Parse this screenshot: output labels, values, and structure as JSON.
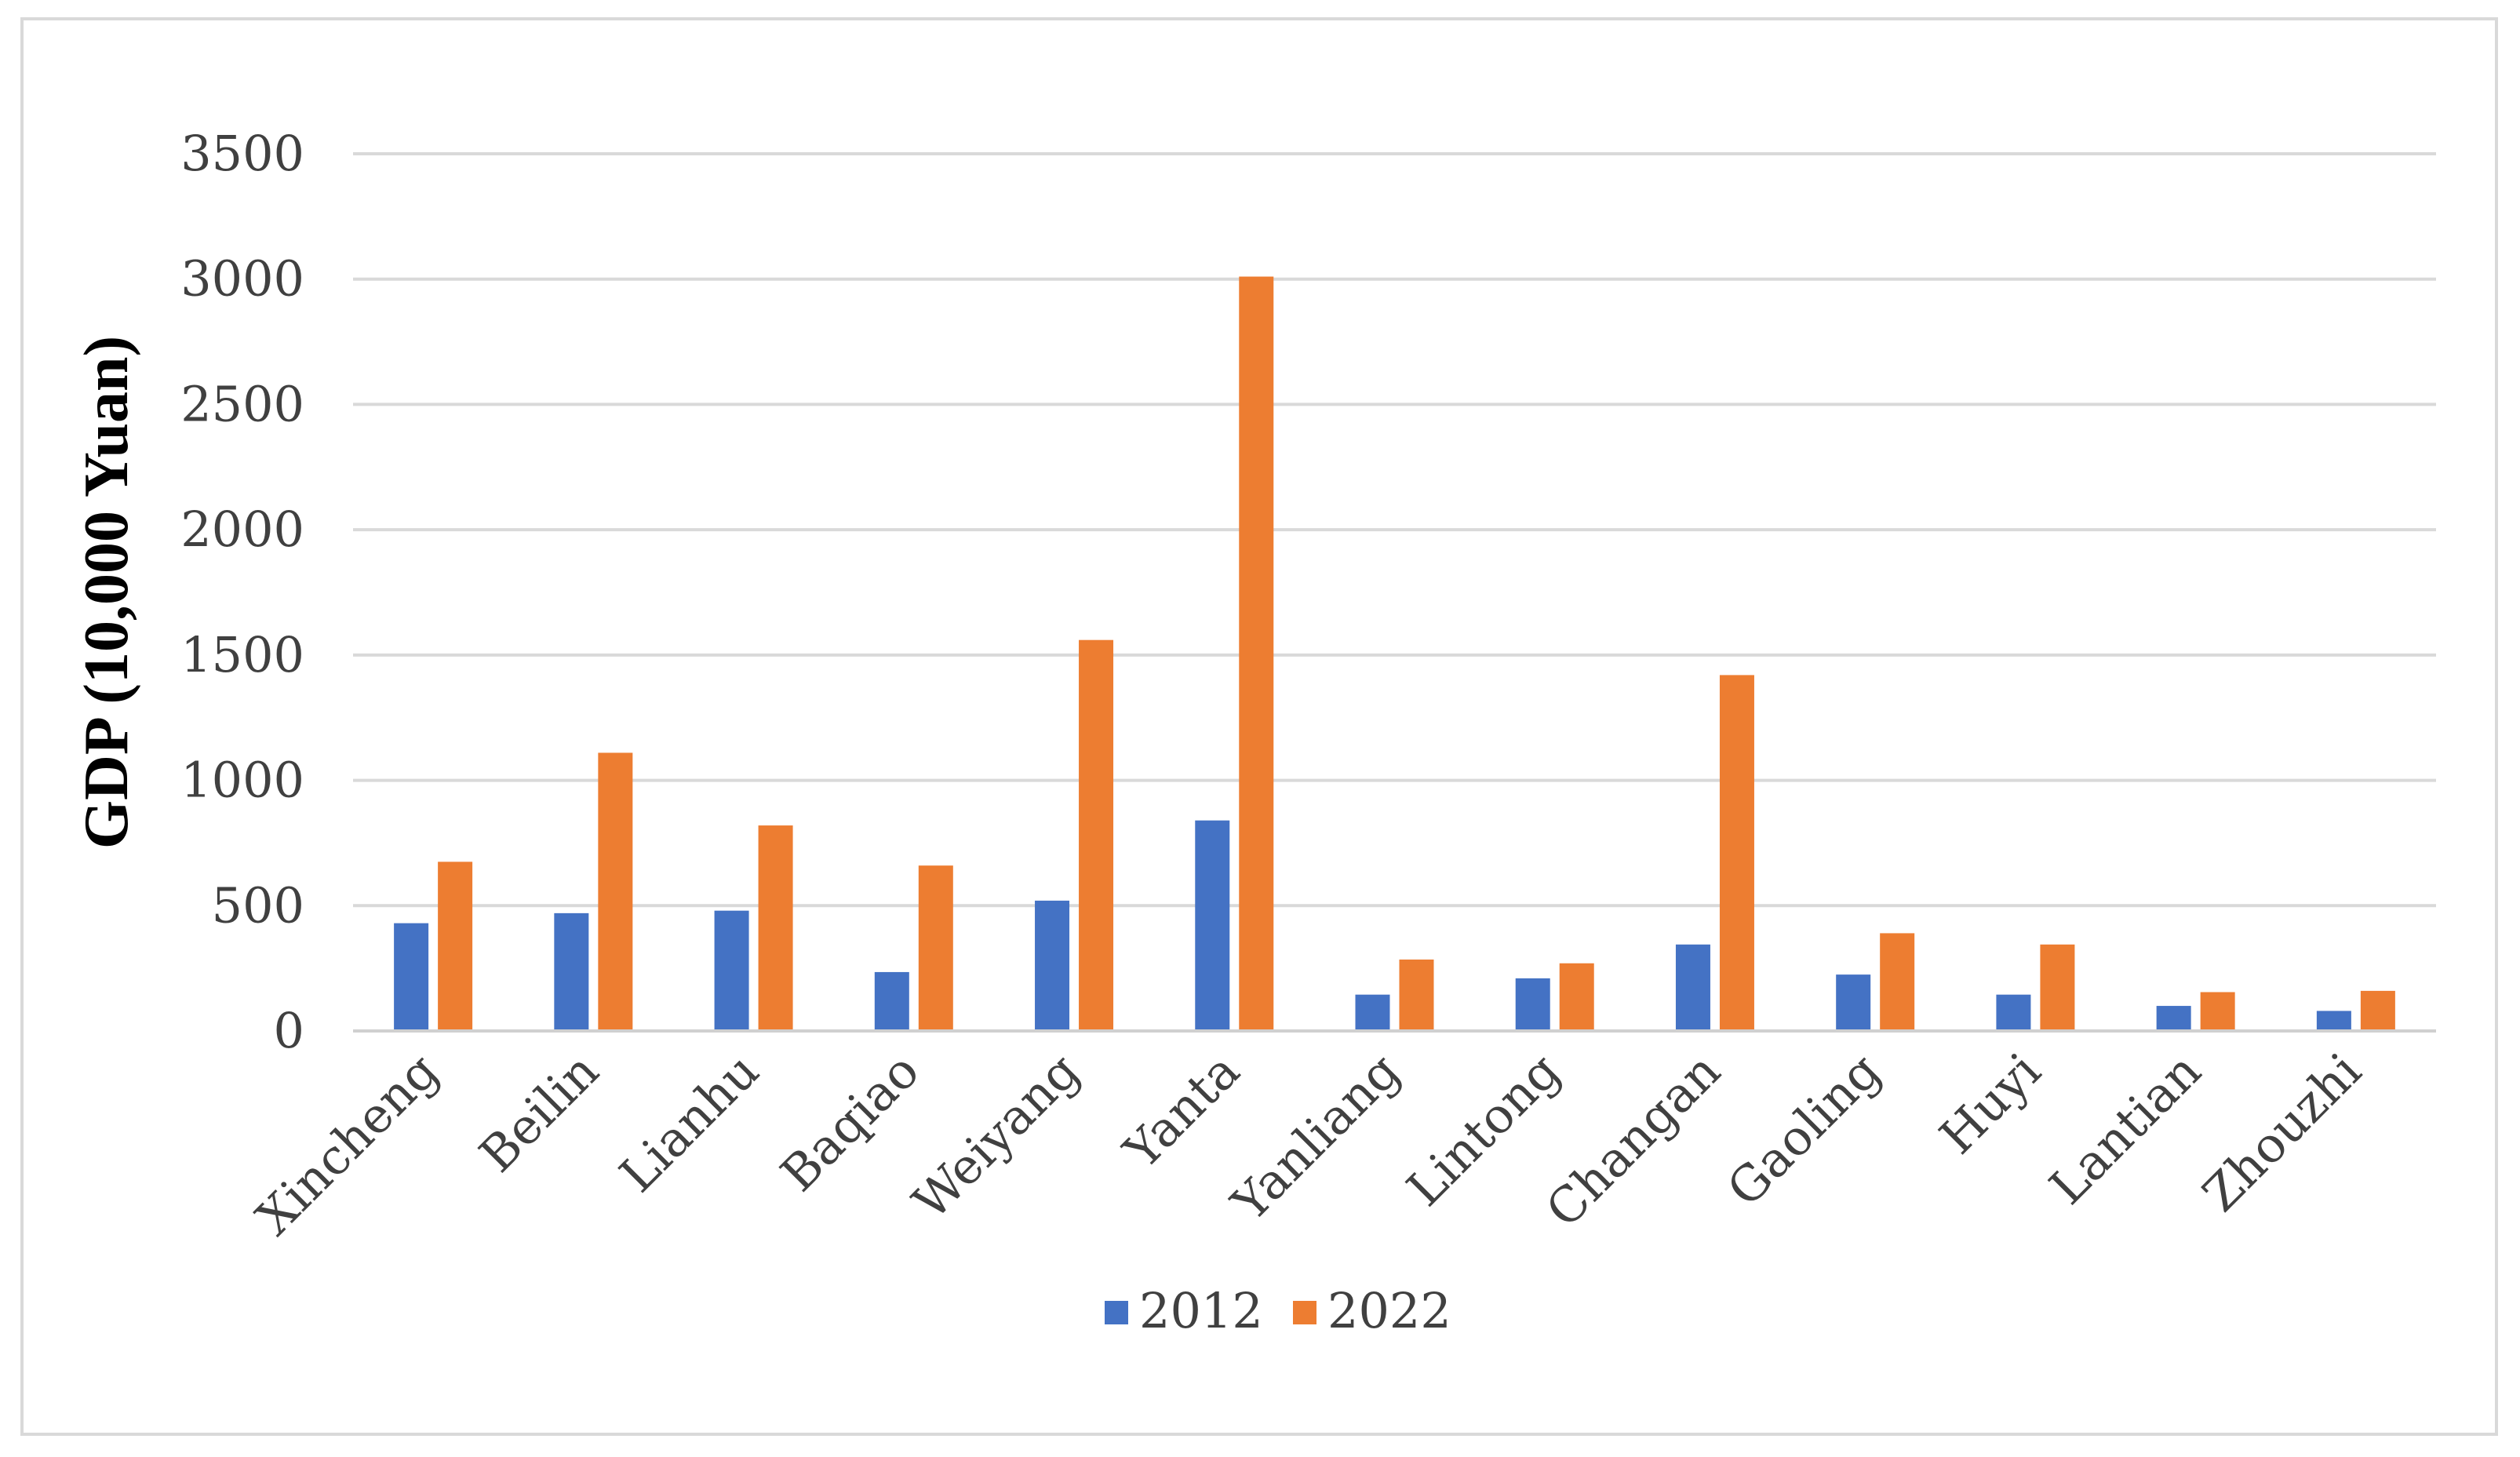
{
  "chart_data": {
    "type": "bar",
    "ylabel": "GDP (10,000 Yuan)",
    "xlabel": "",
    "ylim": [
      0,
      3500
    ],
    "yticks": [
      "0",
      "500",
      "1000",
      "1500",
      "2000",
      "2500",
      "3000",
      "3500"
    ],
    "grid": true,
    "legend_position": "bottom",
    "categories": [
      "Xincheng",
      "Beilin",
      "Lianhu",
      "Baqiao",
      "Weiyang",
      "Yanta",
      "Yanliang",
      "Lintong",
      "Changan",
      "Gaoling",
      "Huyi",
      "Lantian",
      "Zhouzhi"
    ],
    "series": [
      {
        "name": "2012",
        "color": "#4472c4",
        "values": [
          430,
          470,
          480,
          235,
          520,
          840,
          145,
          210,
          345,
          225,
          145,
          100,
          80
        ]
      },
      {
        "name": "2022",
        "color": "#ed7d31",
        "values": [
          675,
          1110,
          820,
          660,
          1560,
          3010,
          285,
          270,
          1420,
          390,
          345,
          155,
          160
        ]
      }
    ]
  }
}
